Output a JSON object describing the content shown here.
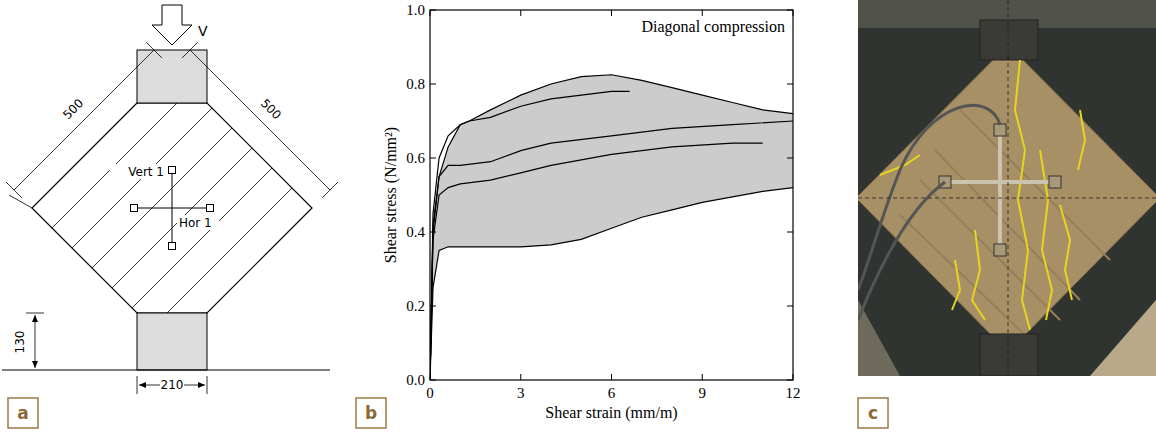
{
  "panels": [
    "a",
    "b",
    "c"
  ],
  "diagram": {
    "load_label": "V",
    "dimensions": [
      "500",
      "500",
      "130",
      "210"
    ],
    "gauges": [
      "Vert 1",
      "Hor 1"
    ]
  },
  "chart_data": {
    "type": "line",
    "annotation": "Diagonal compression",
    "x_label": "Shear strain (mm/m)",
    "y_label": "Shear stress (N/mm²)",
    "xlim": [
      0,
      12
    ],
    "ylim": [
      0,
      1.0
    ],
    "xticks": [
      0,
      3,
      6,
      9,
      12
    ],
    "yticks": [
      {
        "value": 0,
        "label": "0.0"
      },
      {
        "value": 0.2,
        "label": "0.2"
      },
      {
        "value": 0.4,
        "label": "0.4"
      },
      {
        "value": 0.6,
        "label": "0.6"
      },
      {
        "value": 0.8,
        "label": "0.8"
      },
      {
        "value": 1.0,
        "label": "1.0"
      }
    ],
    "grid": false,
    "envelope": {
      "color": "#cccccc",
      "x": [
        0,
        0.1,
        0.3,
        0.6,
        1,
        1.3,
        2,
        3,
        4,
        5,
        6,
        7,
        8,
        9,
        10,
        11,
        12
      ],
      "upper": [
        0,
        0.4,
        0.55,
        0.63,
        0.69,
        0.7,
        0.73,
        0.77,
        0.8,
        0.82,
        0.825,
        0.81,
        0.79,
        0.77,
        0.75,
        0.73,
        0.72
      ],
      "lower": [
        0,
        0.25,
        0.35,
        0.36,
        0.36,
        0.36,
        0.36,
        0.36,
        0.365,
        0.38,
        0.41,
        0.44,
        0.46,
        0.48,
        0.495,
        0.51,
        0.52
      ]
    },
    "series": [
      {
        "color": "#000000",
        "x": [
          0,
          0.1,
          0.3,
          0.6,
          1,
          1.3,
          2,
          3,
          4,
          5,
          6,
          6.6
        ],
        "values": [
          0,
          0.45,
          0.6,
          0.66,
          0.69,
          0.7,
          0.71,
          0.74,
          0.76,
          0.77,
          0.78,
          0.78
        ]
      },
      {
        "color": "#000000",
        "x": [
          0,
          0.1,
          0.3,
          0.6,
          1,
          2,
          3,
          4,
          6,
          8,
          10,
          12
        ],
        "values": [
          0,
          0.42,
          0.55,
          0.58,
          0.58,
          0.59,
          0.62,
          0.64,
          0.66,
          0.68,
          0.69,
          0.7
        ]
      },
      {
        "color": "#000000",
        "x": [
          0,
          0.1,
          0.3,
          0.6,
          1,
          2,
          3,
          4,
          6,
          8,
          10,
          11
        ],
        "values": [
          0,
          0.38,
          0.5,
          0.52,
          0.53,
          0.54,
          0.56,
          0.58,
          0.61,
          0.63,
          0.64,
          0.64
        ]
      }
    ]
  }
}
